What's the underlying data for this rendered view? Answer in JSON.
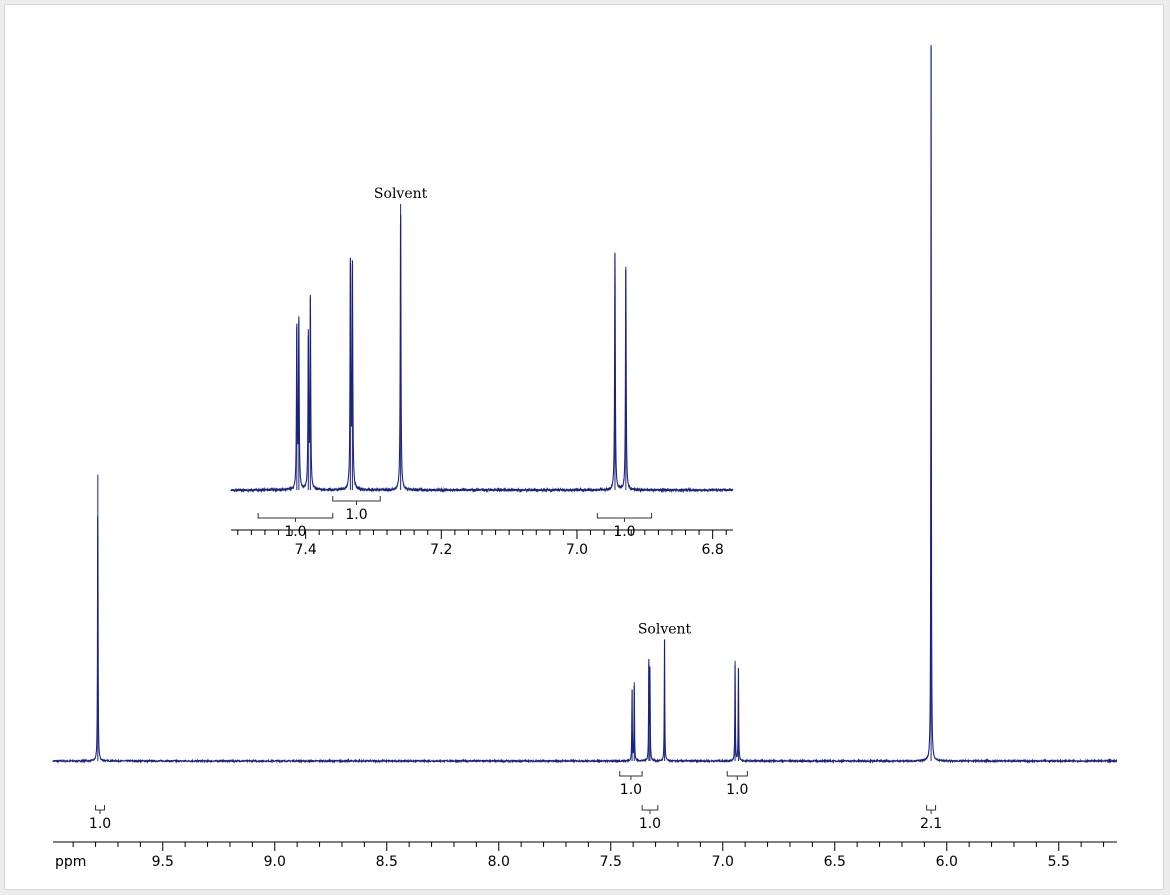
{
  "chart_data": {
    "type": "line",
    "title": "",
    "xlabel": "ppm",
    "ylabel": "",
    "x_direction": "decreasing",
    "color": "#1a237e",
    "main": {
      "xlim": [
        9.99,
        5.24
      ],
      "x_ticks": [
        "9.5",
        "9.0",
        "8.5",
        "8.0",
        "7.5",
        "7.0",
        "6.5",
        "6.0",
        "5.5"
      ],
      "x_tick_values": [
        9.5,
        9.0,
        8.5,
        8.0,
        7.5,
        7.0,
        6.5,
        6.0,
        5.5
      ],
      "peaks": [
        {
          "ppm": 9.79,
          "height": 0.4
        },
        {
          "ppm": 7.405,
          "height": 0.1
        },
        {
          "ppm": 7.395,
          "height": 0.11
        },
        {
          "ppm": 7.33,
          "height": 0.135
        },
        {
          "ppm": 7.325,
          "height": 0.13
        },
        {
          "ppm": 7.26,
          "height": 0.17
        },
        {
          "ppm": 6.945,
          "height": 0.14
        },
        {
          "ppm": 6.93,
          "height": 0.13
        },
        {
          "ppm": 6.07,
          "height": 1.0
        }
      ],
      "integrals": [
        {
          "from": 9.8,
          "to": 9.76,
          "label": "1.0"
        },
        {
          "from": 7.46,
          "to": 7.36,
          "label": "1.0"
        },
        {
          "from": 7.36,
          "to": 7.29,
          "label": "1.0"
        },
        {
          "from": 6.98,
          "to": 6.89,
          "label": "1.0"
        },
        {
          "from": 6.09,
          "to": 6.05,
          "label": "2.1"
        }
      ],
      "annotations": [
        {
          "label": "Solvent",
          "ppm": 7.26
        }
      ]
    },
    "inset": {
      "xlim": [
        7.51,
        6.77
      ],
      "x_ticks": [
        "7.4",
        "7.2",
        "7.0",
        "6.8"
      ],
      "x_tick_values": [
        7.4,
        7.2,
        7.0,
        6.8
      ],
      "peaks": [
        {
          "ppm": 7.413,
          "height": 0.57
        },
        {
          "ppm": 7.41,
          "height": 0.59
        },
        {
          "ppm": 7.396,
          "height": 0.54
        },
        {
          "ppm": 7.393,
          "height": 0.67
        },
        {
          "ppm": 7.334,
          "height": 0.81
        },
        {
          "ppm": 7.331,
          "height": 0.79
        },
        {
          "ppm": 7.26,
          "height": 1.0
        },
        {
          "ppm": 6.944,
          "height": 0.83
        },
        {
          "ppm": 6.928,
          "height": 0.78
        }
      ],
      "integrals": [
        {
          "from": 7.47,
          "to": 7.36,
          "label": "1.0"
        },
        {
          "from": 7.36,
          "to": 7.29,
          "label": "1.0"
        },
        {
          "from": 6.97,
          "to": 6.89,
          "label": "1.0"
        }
      ],
      "annotations": [
        {
          "label": "Solvent",
          "ppm": 7.26
        }
      ]
    }
  }
}
